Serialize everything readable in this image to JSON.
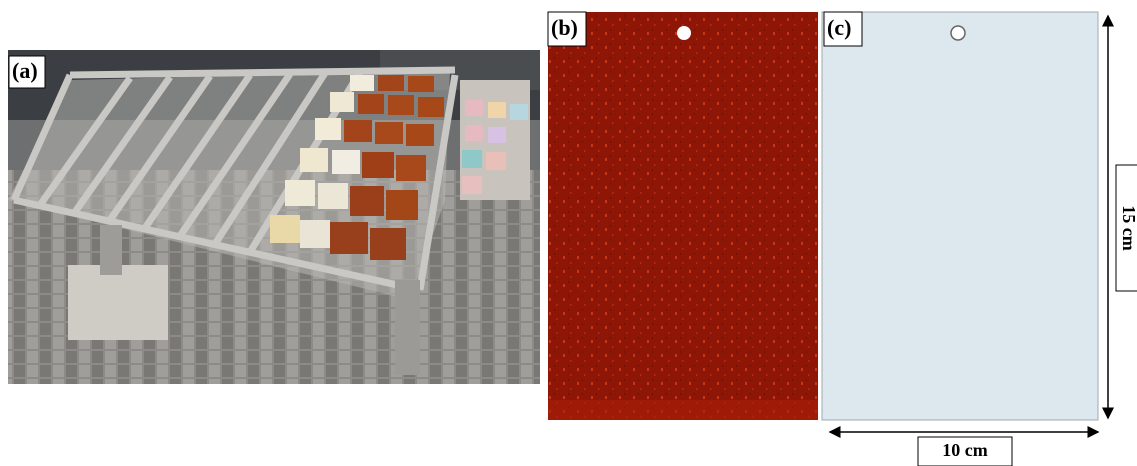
{
  "panels": [
    {
      "label": "(a)"
    },
    {
      "label": "(b)"
    },
    {
      "label": "(c)"
    }
  ],
  "dimensions": {
    "height": "15 cm",
    "width": "10 cm"
  }
}
